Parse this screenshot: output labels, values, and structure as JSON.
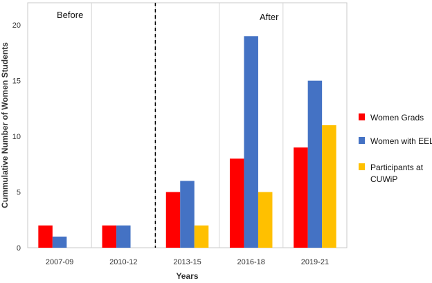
{
  "chart_data": {
    "type": "bar",
    "categories": [
      "2007-09",
      "2010-12",
      "2013-15",
      "2016-18",
      "2019-21"
    ],
    "series": [
      {
        "name": "Women Grads",
        "color": "#ff0000",
        "values": [
          2,
          2,
          5,
          8,
          9
        ]
      },
      {
        "name": "Women with EEL",
        "color": "#4472c4",
        "values": [
          1,
          2,
          6,
          19,
          15
        ]
      },
      {
        "name": "Participants at CUWiP",
        "color": "#ffc000",
        "values": [
          0,
          0,
          2,
          5,
          11
        ]
      }
    ],
    "legend_lines": [
      [
        "Women Grads"
      ],
      [
        "Women with EEL"
      ],
      [
        "Participants at",
        "CUWiP"
      ]
    ],
    "xlabel": "Years",
    "ylabel": "Cummulative Number of Women Students",
    "ylim": [
      0,
      22
    ],
    "yticks": [
      0,
      5,
      10,
      15,
      20
    ],
    "grid": "vertical lines between categories",
    "legend_position": "right",
    "annotations": {
      "before": "Before",
      "after": "After",
      "divider": "dashed vertical line between 2010-12 and 2013-15"
    }
  }
}
